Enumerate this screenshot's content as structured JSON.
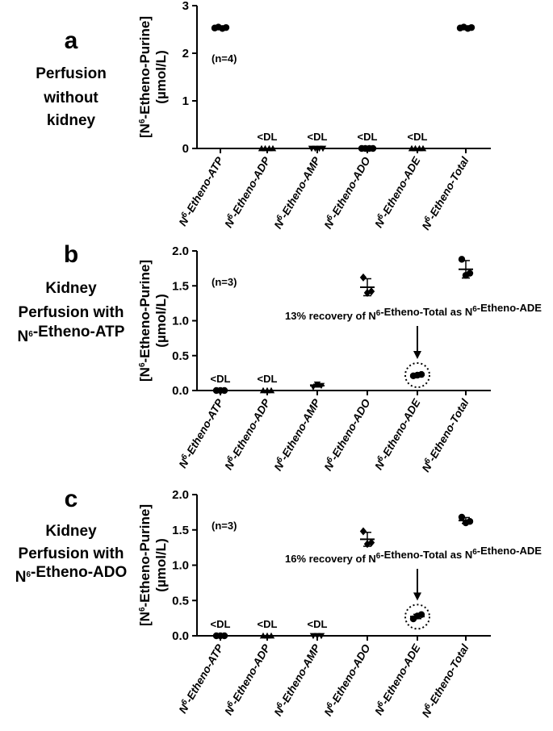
{
  "chart_data": [
    {
      "panel": "a",
      "type": "scatter",
      "condition": [
        "Perfusion",
        "without",
        "kidney"
      ],
      "ylabel_line1_pre": "[N",
      "ylabel_line1_sup": "6",
      "ylabel_line1_post": "-Etheno-Purine]",
      "ylabel_line2": "(µmol/L)",
      "ylim": [
        0,
        3
      ],
      "yticks": [
        "0",
        "1",
        "2",
        "3"
      ],
      "n_label": "(n=4)",
      "categories": [
        "N6-Etheno-ATP",
        "N6-Etheno-ADP",
        "N6-Etheno-AMP",
        "N6-Etheno-ADO",
        "N6-Etheno-ADE",
        "N6-Etheno-Total"
      ],
      "below_dl_label": "<DL",
      "below_dl": [
        false,
        true,
        true,
        true,
        true,
        false
      ],
      "values": [
        [
          2.53,
          2.55,
          2.52,
          2.54
        ],
        [
          0,
          0,
          0,
          0
        ],
        [
          0,
          0,
          0,
          0
        ],
        [
          0,
          0,
          0,
          0
        ],
        [
          0,
          0,
          0,
          0
        ],
        [
          2.53,
          2.55,
          2.52,
          2.54
        ]
      ],
      "markers": [
        "circle",
        "triangle",
        "triangle-down",
        "circle",
        "triangle",
        "circle"
      ],
      "annotation": null
    },
    {
      "panel": "b",
      "type": "scatter",
      "condition": [
        "Kidney",
        "Perfusion with",
        "N6-Etheno-ATP"
      ],
      "ylabel_line1_pre": "[N",
      "ylabel_line1_sup": "6",
      "ylabel_line1_post": "-Etheno-Purine]",
      "ylabel_line2": "(µmol/L)",
      "ylim": [
        0,
        2
      ],
      "yticks": [
        "0.0",
        "0.5",
        "1.0",
        "1.5",
        "2.0"
      ],
      "n_label": "(n=3)",
      "categories": [
        "N6-Etheno-ATP",
        "N6-Etheno-ADP",
        "N6-Etheno-AMP",
        "N6-Etheno-ADO",
        "N6-Etheno-ADE",
        "N6-Etheno-Total"
      ],
      "below_dl_label": "<DL",
      "below_dl": [
        true,
        true,
        false,
        false,
        false,
        false
      ],
      "values": [
        [
          0,
          0,
          0
        ],
        [
          0,
          0,
          0
        ],
        [
          0.05,
          0.09,
          0.07
        ],
        [
          1.62,
          1.4,
          1.42
        ],
        [
          0.21,
          0.22,
          0.23
        ],
        [
          1.88,
          1.65,
          1.68
        ]
      ],
      "markers": [
        "circle",
        "triangle",
        "triangle-down",
        "diamond",
        "circle",
        "circle"
      ],
      "annotation": {
        "text": "13% recovery of N6-Etheno-Total as N6-Etheno-ADE",
        "category": 4,
        "value": 0.22
      }
    },
    {
      "panel": "c",
      "type": "scatter",
      "condition": [
        "Kidney",
        "Perfusion with",
        "N6-Etheno-ADO"
      ],
      "ylabel_line1_pre": "[N",
      "ylabel_line1_sup": "6",
      "ylabel_line1_post": "-Etheno-Purine]",
      "ylabel_line2": "(µmol/L)",
      "ylim": [
        0,
        2
      ],
      "yticks": [
        "0.0",
        "0.5",
        "1.0",
        "1.5",
        "2.0"
      ],
      "n_label": "(n=3)",
      "categories": [
        "N6-Etheno-ATP",
        "N6-Etheno-ADP",
        "N6-Etheno-AMP",
        "N6-Etheno-ADO",
        "N6-Etheno-ADE",
        "N6-Etheno-Total"
      ],
      "below_dl_label": "<DL",
      "below_dl": [
        true,
        true,
        true,
        false,
        false,
        false
      ],
      "values": [
        [
          0,
          0,
          0
        ],
        [
          0,
          0,
          0
        ],
        [
          0,
          0,
          0
        ],
        [
          1.48,
          1.3,
          1.32
        ],
        [
          0.24,
          0.28,
          0.3
        ],
        [
          1.68,
          1.6,
          1.62
        ]
      ],
      "markers": [
        "circle",
        "triangle",
        "triangle-down",
        "diamond",
        "circle",
        "circle"
      ],
      "annotation": {
        "text": "16% recovery of N6-Etheno-Total as N6-Etheno-ADE",
        "category": 4,
        "value": 0.27
      }
    }
  ]
}
